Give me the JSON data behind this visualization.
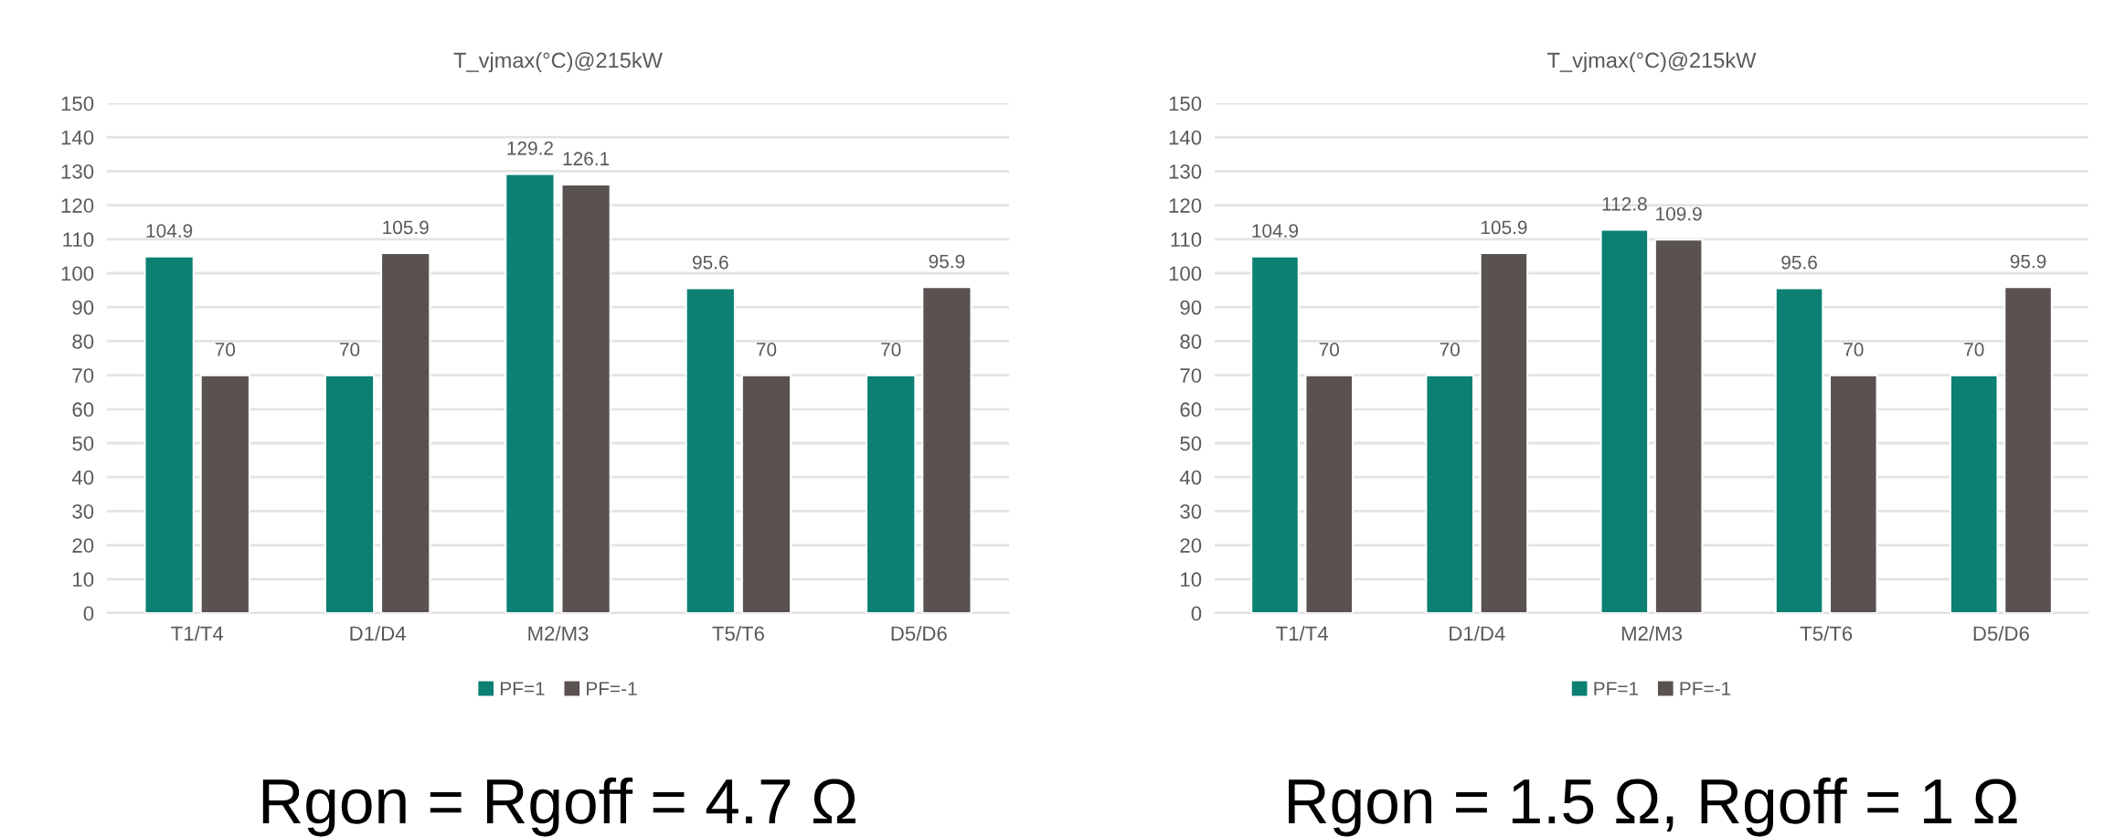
{
  "chart_data": [
    {
      "type": "bar",
      "title": "T_vjmax(°C)@215kW",
      "categories": [
        "T1/T4",
        "D1/D4",
        "M2/M3",
        "T5/T6",
        "D5/D6"
      ],
      "series": [
        {
          "name": "PF=1",
          "color": "#0b8073",
          "values": [
            104.9,
            70,
            129.2,
            95.6,
            70
          ]
        },
        {
          "name": "PF=-1",
          "color": "#595250",
          "values": [
            70,
            105.9,
            126.1,
            70,
            95.9
          ]
        }
      ],
      "ylim": [
        0,
        150
      ],
      "yticks": [
        0,
        10,
        20,
        30,
        40,
        50,
        60,
        70,
        80,
        90,
        100,
        110,
        120,
        130,
        140,
        150
      ],
      "grid": "y",
      "legend": "bottom",
      "data_labels": true,
      "annotations": [
        "Rgon = Rgoff = 4.7 Ω"
      ]
    },
    {
      "type": "bar",
      "title": "T_vjmax(°C)@215kW",
      "categories": [
        "T1/T4",
        "D1/D4",
        "M2/M3",
        "T5/T6",
        "D5/D6"
      ],
      "series": [
        {
          "name": "PF=1",
          "color": "#0b8073",
          "values": [
            104.9,
            70,
            112.8,
            95.6,
            70
          ]
        },
        {
          "name": "PF=-1",
          "color": "#595250",
          "values": [
            70,
            105.9,
            109.9,
            70,
            95.9
          ]
        }
      ],
      "ylim": [
        0,
        150
      ],
      "yticks": [
        0,
        10,
        20,
        30,
        40,
        50,
        60,
        70,
        80,
        90,
        100,
        110,
        120,
        130,
        140,
        150
      ],
      "grid": "y",
      "legend": "bottom",
      "data_labels": true,
      "annotations": [
        "Rgon = 1.5 Ω, Rgoff = 1 Ω"
      ]
    }
  ]
}
